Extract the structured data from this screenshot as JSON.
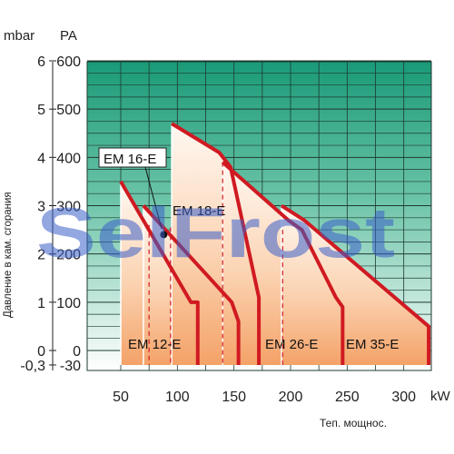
{
  "chart_data": {
    "type": "line",
    "title": "",
    "xlabel": "Теп. мощнос.",
    "x_unit": "kW",
    "ylabel": "Давление в кам. сгорания",
    "y_unit_left": "mbar",
    "y_unit_right": "PA",
    "xlim": [
      40,
      325
    ],
    "ylim": [
      -30,
      600
    ],
    "x_ticks": [
      "50",
      "100",
      "150",
      "200",
      "250",
      "300"
    ],
    "x_tick_values": [
      50,
      100,
      150,
      200,
      250,
      300
    ],
    "y_ticks_pa": [
      "-30",
      "0",
      "100",
      "200",
      "300",
      "400",
      "500",
      "600"
    ],
    "y_tick_values": [
      -30,
      0,
      100,
      200,
      300,
      400,
      500,
      600
    ],
    "y_ticks_mbar": [
      "-0,3",
      "0",
      "1",
      "2",
      "3",
      "4",
      "5",
      "6"
    ],
    "grid": true,
    "colors": {
      "grid_bg_top": "#1a9a78",
      "grid_bg_bottom": "#ffffff",
      "grid_lines": "#1c3a30",
      "curve": "#d01a22",
      "fill_top": "#fff8f2",
      "fill_bottom": "#f4a268",
      "marker": "#111111",
      "watermark": "#3a5fc8"
    },
    "series": [
      {
        "name": "EM 12-E",
        "x": [
          50,
          112,
          118,
          118
        ],
        "y": [
          350,
          100,
          100,
          -30
        ]
      },
      {
        "name": "EM 16-E",
        "x": [
          70,
          148,
          154,
          154
        ],
        "y": [
          300,
          100,
          60,
          -30
        ]
      },
      {
        "name": "EM 18-E",
        "x": [
          95,
          137,
          147,
          172,
          172
        ],
        "y": [
          470,
          410,
          380,
          110,
          -30
        ]
      },
      {
        "name": "EM 26-E",
        "x": [
          140,
          198,
          210,
          240,
          246,
          246
        ],
        "y": [
          390,
          270,
          250,
          110,
          90,
          -30
        ]
      },
      {
        "name": "EM 35-E",
        "x": [
          192,
          212,
          322,
          322
        ],
        "y": [
          300,
          270,
          50,
          -30
        ]
      }
    ],
    "dashed_lines_x": [
      75,
      94,
      140,
      193
    ],
    "marker_point": {
      "x": 88,
      "y": 240
    },
    "labels": {
      "em12": "EM 12-E",
      "em16": "EM 16-E",
      "em18": "EM 18-E",
      "em26": "EM 26-E",
      "em35": "EM 35-E"
    },
    "watermark": "SelFrost"
  }
}
